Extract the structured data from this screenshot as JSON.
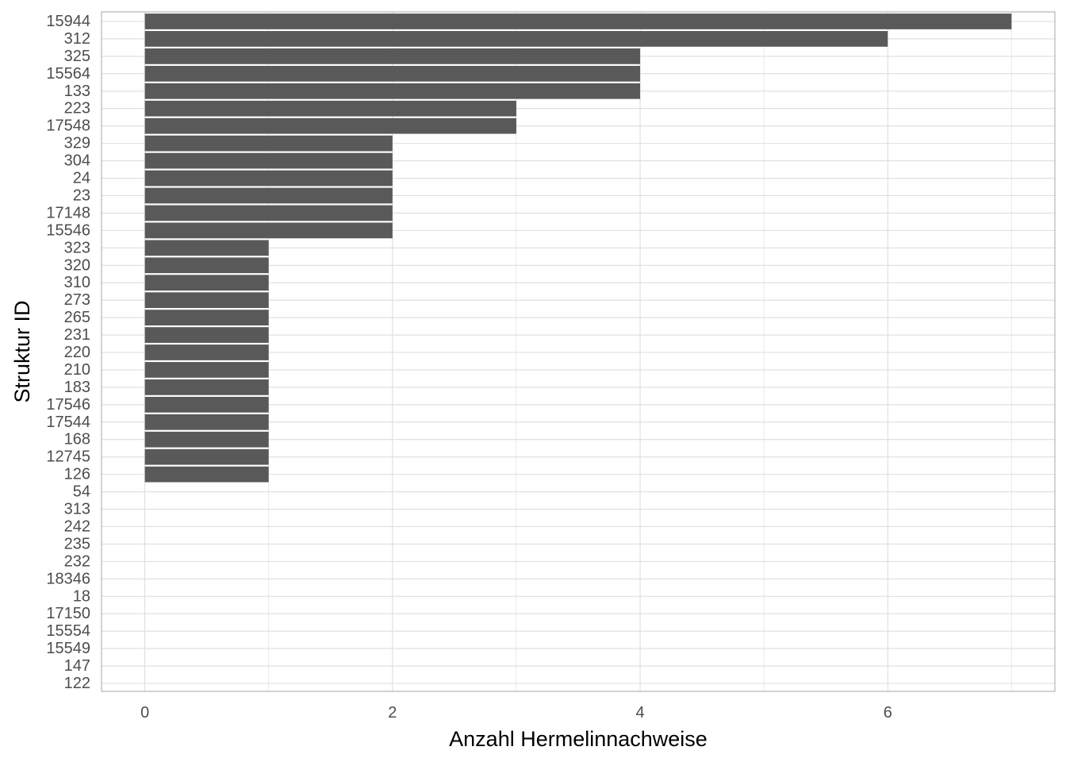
{
  "chart_data": {
    "type": "bar",
    "orientation": "horizontal",
    "title": "",
    "xlabel": "Anzahl Hermelinnachweise",
    "ylabel": "Struktur ID",
    "categories": [
      "15944",
      "312",
      "325",
      "15564",
      "133",
      "223",
      "17548",
      "329",
      "304",
      "24",
      "23",
      "17148",
      "15546",
      "323",
      "320",
      "310",
      "273",
      "265",
      "231",
      "220",
      "210",
      "183",
      "17546",
      "17544",
      "168",
      "12745",
      "126",
      "54",
      "313",
      "242",
      "235",
      "232",
      "18346",
      "18",
      "17150",
      "15554",
      "15549",
      "147",
      "122"
    ],
    "values": [
      7,
      6,
      4,
      4,
      4,
      3,
      3,
      2,
      2,
      2,
      2,
      2,
      2,
      1,
      1,
      1,
      1,
      1,
      1,
      1,
      1,
      1,
      1,
      1,
      1,
      1,
      1,
      0,
      0,
      0,
      0,
      0,
      0,
      0,
      0,
      0,
      0,
      0,
      0
    ],
    "x_ticks": [
      0,
      2,
      4,
      6
    ],
    "xlim": [
      -0.35,
      7.35
    ],
    "grid": true,
    "legend": "none",
    "colors": {
      "bar": "#595959",
      "grid": "#dedede",
      "panel_border": "#b3b3b3",
      "tick_text": "#4d4d4d"
    }
  }
}
